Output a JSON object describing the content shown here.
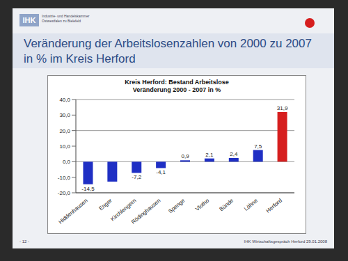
{
  "chart_data": {
    "type": "bar",
    "title": "Veränderung der Arbeitslosenzahlen von 2000 zu 2007 in % im Kreis Herford",
    "subtitle": [
      "Kreis Herford: Bestand Arbeitslose",
      "Veränderung 2000 - 2007 in %"
    ],
    "annotations": [
      "IHK",
      "Industrie- und Handelskammer Ostwestfalen zu Bielefeld",
      "- 12 -",
      "IHK Wirtschaftsgespräch Herford 29.01.2008"
    ],
    "categories": [
      "Hiddenhausen",
      "Enger",
      "Kirchlengern",
      "Rödinghausen",
      "Spenge",
      "Vlotho",
      "Bünde",
      "Löhne",
      "Herford"
    ],
    "values": [
      -14.5,
      -12.8,
      -7.2,
      -4.1,
      0.9,
      2.1,
      2.4,
      7.5,
      31.9
    ],
    "value_labels": [
      "-14,5",
      null,
      "-7,2",
      "-4,1",
      "0,9",
      "2,1",
      "2,4",
      "7,5",
      "31,9"
    ],
    "colors": [
      "#1f2fc4",
      "#1f2fc4",
      "#1f2fc4",
      "#1f2fc4",
      "#1f2fc4",
      "#1f2fc4",
      "#1f2fc4",
      "#1f2fc4",
      "#d61e1e"
    ],
    "ylim": [
      -20,
      40
    ],
    "yticks": [
      {
        "value": -20,
        "label": "-20,0"
      },
      {
        "value": -10,
        "label": "-10,0"
      },
      {
        "value": 0,
        "label": "0,0"
      },
      {
        "value": 10,
        "label": "10,0"
      },
      {
        "value": 20,
        "label": "20,0"
      },
      {
        "value": 30,
        "label": "30,0"
      },
      {
        "value": 40,
        "label": "40,0"
      }
    ],
    "grid": true,
    "data_labels": true
  }
}
